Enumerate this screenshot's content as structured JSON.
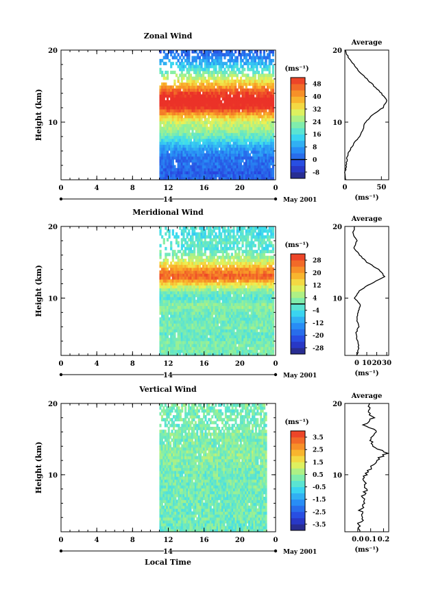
{
  "date_label": "May 2001",
  "xlabel": "Local Time",
  "chart_data": [
    {
      "type": "heatmap",
      "title": "Zonal Wind",
      "ylabel": "Height (km)",
      "ylim": [
        2,
        20
      ],
      "yticks": [
        "10",
        "20"
      ],
      "xlim": [
        0,
        24
      ],
      "xticks": [
        "0",
        "4",
        "8",
        "12",
        "16",
        "20",
        "0"
      ],
      "day_label": "14",
      "unit": "(ms⁻¹)",
      "colorbar": {
        "ticks": [
          "48",
          "40",
          "32",
          "24",
          "16",
          "8",
          "0",
          "-8"
        ],
        "min": -12,
        "max": 52,
        "zero_line": true
      },
      "data_time_range": [
        11,
        23.8
      ],
      "profile": [
        [
          2,
          1
        ],
        [
          3,
          0
        ],
        [
          4,
          2
        ],
        [
          5,
          3
        ],
        [
          6,
          6
        ],
        [
          7,
          12
        ],
        [
          8,
          20
        ],
        [
          9,
          25
        ],
        [
          10,
          28
        ],
        [
          11,
          38
        ],
        [
          12,
          52
        ],
        [
          13,
          58
        ],
        [
          14,
          50
        ],
        [
          15,
          40
        ],
        [
          16,
          30
        ],
        [
          17,
          20
        ],
        [
          18,
          12
        ],
        [
          19,
          5
        ],
        [
          20,
          0
        ]
      ],
      "average": {
        "title": "Average",
        "xlim": [
          0,
          60
        ],
        "xticks": [
          "0",
          "50"
        ],
        "ylim": [
          2,
          20
        ],
        "yticks": [
          "10",
          "20"
        ],
        "xlabel": "(ms⁻¹)"
      }
    },
    {
      "type": "heatmap",
      "title": "Meridional Wind",
      "ylabel": "Height (km)",
      "ylim": [
        2,
        20
      ],
      "yticks": [
        "10",
        "20"
      ],
      "xlim": [
        0,
        24
      ],
      "xticks": [
        "0",
        "4",
        "8",
        "12",
        "16",
        "20",
        "0"
      ],
      "day_label": "14",
      "unit": "(ms⁻¹)",
      "colorbar": {
        "ticks": [
          "28",
          "20",
          "12",
          "4",
          "-4",
          "-12",
          "-20",
          "-28"
        ],
        "min": -32,
        "max": 32,
        "zero_line": true
      },
      "data_time_range": [
        11,
        23.8
      ],
      "profile": [
        [
          2,
          0
        ],
        [
          3,
          2
        ],
        [
          4,
          1
        ],
        [
          5,
          -1
        ],
        [
          6,
          2
        ],
        [
          7,
          0
        ],
        [
          8,
          1
        ],
        [
          9,
          4
        ],
        [
          10,
          -2
        ],
        [
          11,
          2
        ],
        [
          12,
          14
        ],
        [
          13,
          28
        ],
        [
          14,
          22
        ],
        [
          15,
          10
        ],
        [
          16,
          3
        ],
        [
          17,
          -3
        ],
        [
          18,
          0
        ],
        [
          19,
          -4
        ],
        [
          20,
          -2
        ]
      ],
      "average": {
        "title": "Average",
        "xlim": [
          -12,
          32
        ],
        "xticks": [
          "0",
          "10",
          "20",
          "30"
        ],
        "ylim": [
          2,
          20
        ],
        "yticks": [
          "10",
          "20"
        ],
        "xlabel": "(ms⁻¹)"
      }
    },
    {
      "type": "heatmap",
      "title": "Vertical Wind",
      "ylabel": "Height (km)",
      "ylim": [
        2,
        20
      ],
      "yticks": [
        "10",
        "20"
      ],
      "xlim": [
        0,
        24
      ],
      "xticks": [
        "0",
        "4",
        "8",
        "12",
        "16",
        "20",
        "0"
      ],
      "day_label": "14",
      "unit": "(ms⁻¹)",
      "colorbar": {
        "ticks": [
          "3.5",
          "2.5",
          "1.5",
          "0.5",
          "-0.5",
          "-1.5",
          "-2.5",
          "-3.5"
        ],
        "min": -4,
        "max": 4,
        "zero_line": false
      },
      "data_time_range": [
        11,
        23
      ],
      "profile": [
        [
          2,
          0.03
        ],
        [
          3,
          0.0
        ],
        [
          4,
          0.05
        ],
        [
          5,
          0.02
        ],
        [
          6,
          0.06
        ],
        [
          7,
          0.04
        ],
        [
          8,
          0.07
        ],
        [
          9,
          0.05
        ],
        [
          10,
          0.06
        ],
        [
          11,
          0.1
        ],
        [
          12,
          0.14
        ],
        [
          13,
          0.22
        ],
        [
          14,
          0.12
        ],
        [
          15,
          0.1
        ],
        [
          16,
          0.15
        ],
        [
          17,
          0.05
        ],
        [
          18,
          0.12
        ],
        [
          19,
          0.08
        ],
        [
          20,
          0.1
        ]
      ],
      "average": {
        "title": "Average",
        "xlim": [
          -0.1,
          0.24
        ],
        "xticks": [
          "0.0",
          "0.1",
          "0.2"
        ],
        "ylim": [
          2,
          20
        ],
        "yticks": [
          "10",
          "20"
        ],
        "xlabel": "(ms⁻¹)"
      }
    }
  ]
}
